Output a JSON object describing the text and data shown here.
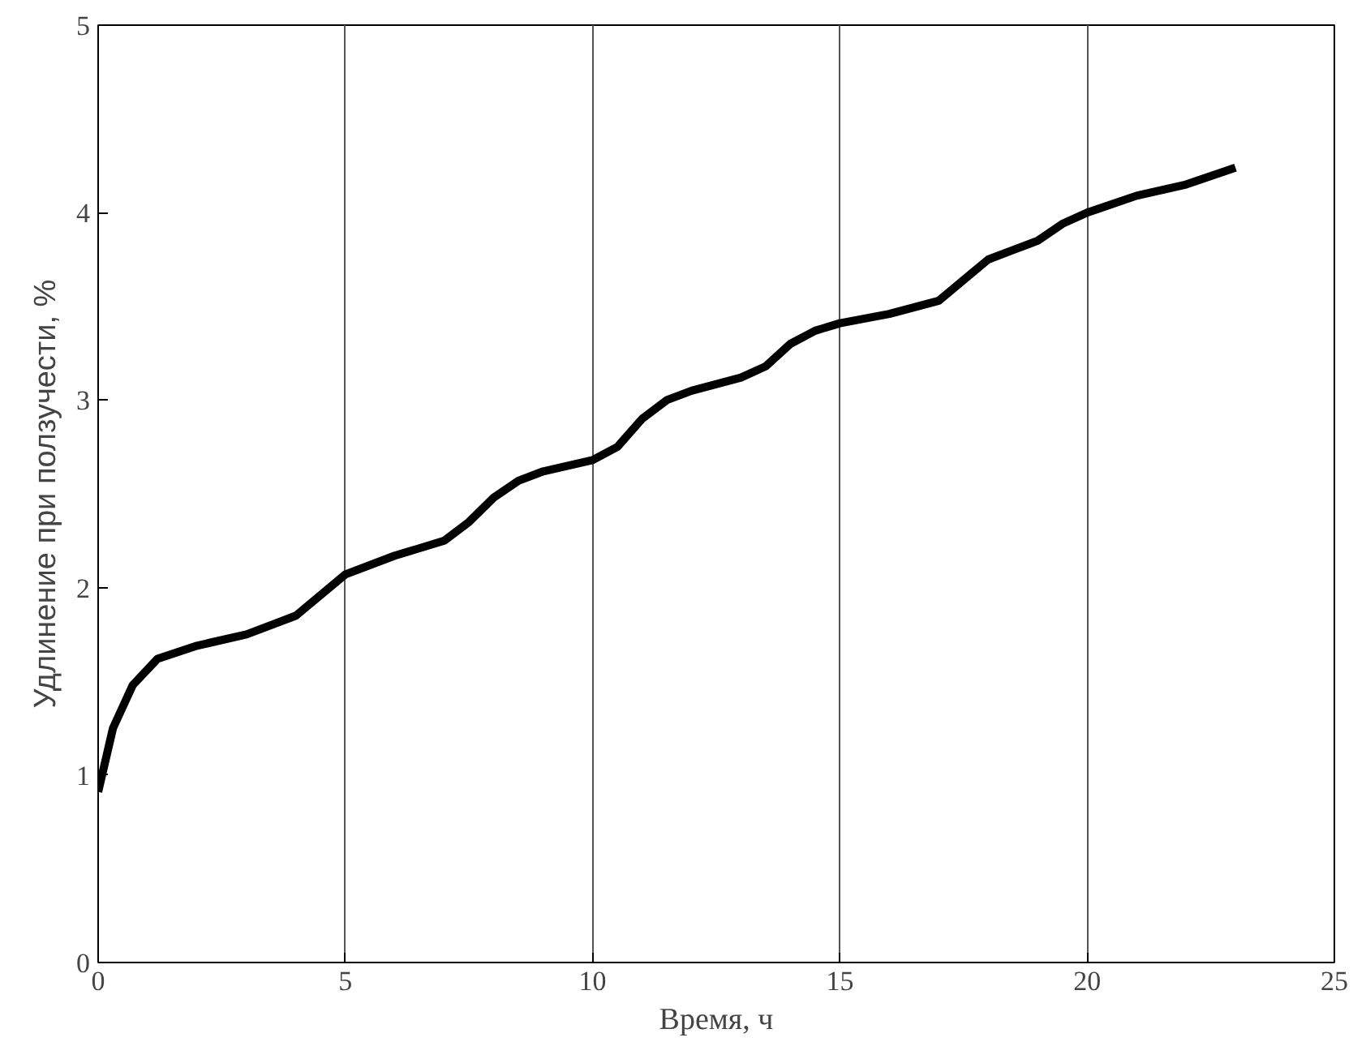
{
  "chart_data": {
    "type": "line",
    "xlabel": "Время, ч",
    "ylabel": "Удлинение при ползучести, %",
    "x": [
      0,
      0.3,
      0.7,
      1.2,
      2,
      3,
      4,
      5,
      6,
      7,
      7.5,
      8,
      8.5,
      9,
      10,
      10.5,
      11,
      11.5,
      12,
      13,
      13.5,
      14,
      14.5,
      15,
      16,
      17,
      17.5,
      18,
      18.5,
      19,
      19.5,
      20,
      21,
      22,
      23
    ],
    "series": [
      {
        "color": "#000000",
        "values": [
          0.91,
          1.25,
          1.48,
          1.62,
          1.69,
          1.75,
          1.85,
          2.07,
          2.17,
          2.25,
          2.35,
          2.48,
          2.57,
          2.62,
          2.68,
          2.75,
          2.9,
          3.0,
          3.05,
          3.12,
          3.18,
          3.3,
          3.37,
          3.41,
          3.46,
          3.53,
          3.64,
          3.75,
          3.8,
          3.85,
          3.94,
          4.0,
          4.09,
          4.15,
          4.24
        ]
      }
    ],
    "xlim": [
      0,
      25
    ],
    "ylim": [
      0,
      5
    ],
    "xticks": [
      0,
      5,
      10,
      15,
      20,
      25
    ],
    "yticks": [
      0,
      1,
      2,
      3,
      4,
      5
    ],
    "grid": "x",
    "marker": "none",
    "line_style": "solid"
  }
}
